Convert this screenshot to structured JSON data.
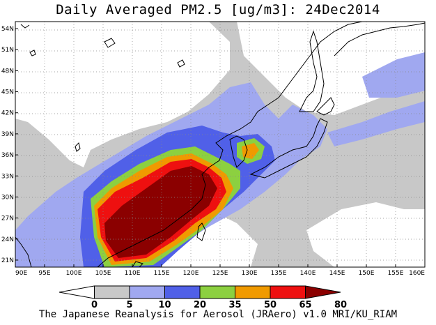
{
  "title": "Daily Averaged PM2.5 [ug/m3]: 24Dec2014",
  "footer": "The Japanese Reanalysis for Aerosol (JRAero) v1.0 MRI/KU_RIAM",
  "map": {
    "lon_range": [
      90,
      160
    ],
    "lat_range": [
      20,
      55
    ],
    "lon_ticks": [
      "90E",
      "95E",
      "100E",
      "105E",
      "110E",
      "115E",
      "120E",
      "125E",
      "130E",
      "135E",
      "140E",
      "145E",
      "150E",
      "155E",
      "160E"
    ],
    "lat_ticks": [
      "21N",
      "24N",
      "27N",
      "30N",
      "33N",
      "36N",
      "39N",
      "42N",
      "45N",
      "48N",
      "51N",
      "54N"
    ],
    "grid": "dotted"
  },
  "colorbar": {
    "levels": [
      "0",
      "5",
      "10",
      "20",
      "35",
      "50",
      "65",
      "80"
    ],
    "colors": [
      "#ffffff",
      "#c8c8c8",
      "#a0a8f0",
      "#5060e8",
      "#8cd040",
      "#f09a00",
      "#ee1010",
      "#8b0000"
    ]
  }
}
